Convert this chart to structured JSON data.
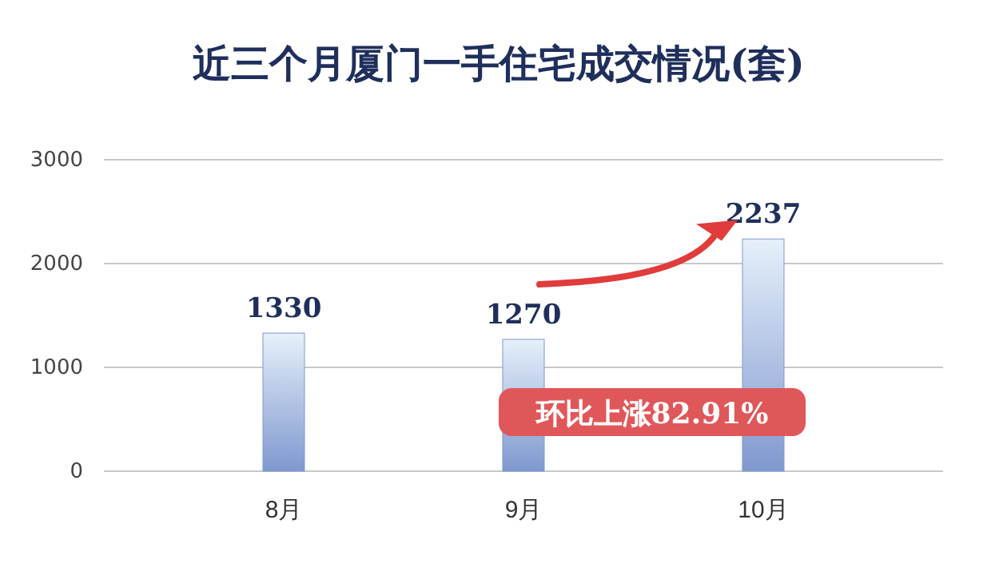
{
  "chart_data": {
    "type": "bar",
    "title": "近三个月厦门一手住宅成交情况(套)",
    "categories": [
      "8月",
      "9月",
      "10月"
    ],
    "values": [
      1330,
      1270,
      2237
    ],
    "color": "#7f98cf",
    "ylim": [
      0,
      3000
    ],
    "yticks": [
      0,
      1000,
      2000,
      3000
    ],
    "grid": "y",
    "data_labels": true,
    "annotations": [
      "环比上涨82.91%"
    ]
  }
}
